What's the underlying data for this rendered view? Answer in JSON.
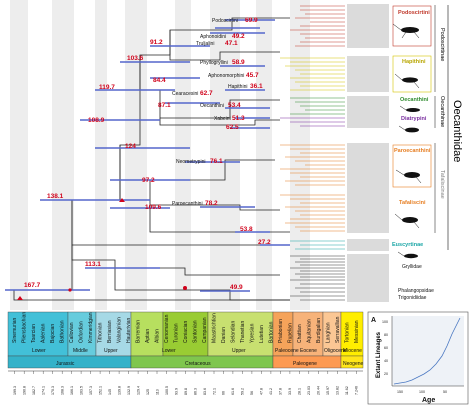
{
  "family_label": "Oecanthidae",
  "subfamilies": [
    {
      "name": "Podoscirtinae",
      "color": "#111111"
    },
    {
      "name": "Oecanthinae",
      "color": "#111111"
    },
    {
      "name": "Tafaliscinae",
      "color": "#111111"
    }
  ],
  "clades": [
    {
      "name": "Podoscirtini",
      "color": "#c0392b"
    },
    {
      "name": "Hapithini",
      "color": "#d4c400"
    },
    {
      "name": "Oecanthini",
      "color": "#2e8b2e"
    },
    {
      "name": "Diatrypini",
      "color": "#7a2fa0"
    },
    {
      "name": "Paroecanthini",
      "color": "#e67e22"
    },
    {
      "name": "Tafaliscini",
      "color": "#e67e22"
    },
    {
      "name": "Euscyrtinae",
      "color": "#1aa6a6"
    },
    {
      "name": "Gryllidae",
      "color": "#111111"
    },
    {
      "name": "Phalangopsidae",
      "color": "#111111"
    },
    {
      "name": "Trigonidiidae",
      "color": "#111111"
    }
  ],
  "nodes": [
    {
      "tribe": "Podoscirtini",
      "age": "69.9"
    },
    {
      "tribe": "Aphonoidini",
      "age": "49.2"
    },
    {
      "tribe": "Truljalini",
      "age": "47.1"
    },
    {
      "tribe": "",
      "age": "91.2"
    },
    {
      "tribe": "",
      "age": "103.6"
    },
    {
      "tribe": "Phyllogryllini",
      "age": "58.9"
    },
    {
      "tribe": "Aphonomorphini",
      "age": "45.7"
    },
    {
      "tribe": "Hapithini",
      "age": "36.1"
    },
    {
      "tribe": "",
      "age": "84.4"
    },
    {
      "tribe": "Cearacesini",
      "age": "62.7"
    },
    {
      "tribe": "",
      "age": "119.7"
    },
    {
      "tribe": "",
      "age": "87.1"
    },
    {
      "tribe": "Oecanthini",
      "age": "53.4"
    },
    {
      "tribe": "Xabeini",
      "age": "51.3"
    },
    {
      "tribe": "",
      "age": "108.9"
    },
    {
      "tribe": "",
      "age": "62.5"
    },
    {
      "tribe": "",
      "age": "124"
    },
    {
      "tribe": "Neometrypini",
      "age": "76.1"
    },
    {
      "tribe": "",
      "age": "97.2"
    },
    {
      "tribe": "",
      "age": "138.1"
    },
    {
      "tribe": "",
      "age": "109.6"
    },
    {
      "tribe": "Paroecanthini",
      "age": "78.2"
    },
    {
      "tribe": "",
      "age": "53.8"
    },
    {
      "tribe": "",
      "age": "27.2"
    },
    {
      "tribe": "",
      "age": "113.1"
    },
    {
      "tribe": "",
      "age": "167.7"
    },
    {
      "tribe": "",
      "age": "49.9"
    }
  ],
  "timescale": {
    "stages": [
      "Sinemurian",
      "Pliensbachian",
      "Toarcian",
      "Aalenian",
      "Bajocian",
      "Bathonian",
      "Callovian",
      "Oxfordian",
      "Kimmeridgian",
      "Tithonian",
      "Berriasian",
      "Valanginian",
      "Hauterivian",
      "Barremian",
      "Aptian",
      "Albian",
      "Cenomanian",
      "Turonian",
      "Coniacian",
      "Santonian",
      "Campanian",
      "Maastrichtian",
      "Danian",
      "Selandian",
      "Thanetian",
      "Ypresian",
      "Lutetian",
      "Bartonian",
      "Priabonian",
      "Rupelian",
      "Chattian",
      "Aquitanian",
      "Burdigalian",
      "Langhian",
      "Serravallian",
      "Tortonian",
      "Messinian"
    ],
    "epochs": [
      "Lower",
      "Middle",
      "Upper",
      "Lower",
      "Upper",
      "Paleocene",
      "Eocene",
      "Oligocene",
      "Miocene"
    ],
    "periods": [
      "Jurassic",
      "Cretaceous",
      "Paleogene",
      "Neogene"
    ],
    "ticks": [
      "199.3",
      "190.8",
      "182.7",
      "174.1",
      "170.3",
      "168.3",
      "166.1",
      "163.5",
      "157.3",
      "152.1",
      "145",
      "139.8",
      "132.9",
      "129.4",
      "125",
      "113",
      "100.5",
      "93.9",
      "89.8",
      "86.3",
      "83.6",
      "72.1",
      "66",
      "61.6",
      "59.2",
      "56",
      "47.8",
      "41.2",
      "37.8",
      "33.9",
      "28.1",
      "23.03",
      "20.44",
      "15.97",
      "13.82",
      "11.62",
      "7.246"
    ]
  },
  "inset": {
    "panel": "A",
    "ylabel": "Extant Lineages",
    "xlabel": "Age",
    "yticks": [
      "20",
      "40",
      "60",
      "80",
      "100"
    ],
    "xticks": [
      "150",
      "100",
      "50"
    ]
  }
}
